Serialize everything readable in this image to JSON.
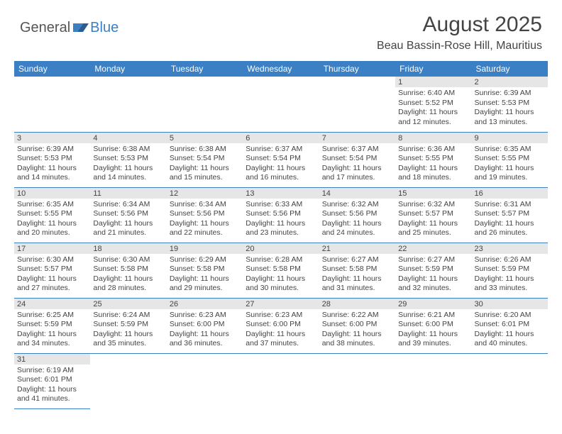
{
  "logo": {
    "general": "General",
    "blue": "Blue"
  },
  "title": "August 2025",
  "location": "Beau Bassin-Rose Hill, Mauritius",
  "colors": {
    "header_blue": "#3b7fc4",
    "daynum_bg": "#e6e6e6",
    "text": "#444444",
    "background": "#ffffff"
  },
  "weekdays": [
    "Sunday",
    "Monday",
    "Tuesday",
    "Wednesday",
    "Thursday",
    "Friday",
    "Saturday"
  ],
  "weeks": [
    [
      null,
      null,
      null,
      null,
      null,
      {
        "n": "1",
        "sr": "Sunrise: 6:40 AM",
        "ss": "Sunset: 5:52 PM",
        "dl": "Daylight: 11 hours and 12 minutes."
      },
      {
        "n": "2",
        "sr": "Sunrise: 6:39 AM",
        "ss": "Sunset: 5:53 PM",
        "dl": "Daylight: 11 hours and 13 minutes."
      }
    ],
    [
      {
        "n": "3",
        "sr": "Sunrise: 6:39 AM",
        "ss": "Sunset: 5:53 PM",
        "dl": "Daylight: 11 hours and 14 minutes."
      },
      {
        "n": "4",
        "sr": "Sunrise: 6:38 AM",
        "ss": "Sunset: 5:53 PM",
        "dl": "Daylight: 11 hours and 14 minutes."
      },
      {
        "n": "5",
        "sr": "Sunrise: 6:38 AM",
        "ss": "Sunset: 5:54 PM",
        "dl": "Daylight: 11 hours and 15 minutes."
      },
      {
        "n": "6",
        "sr": "Sunrise: 6:37 AM",
        "ss": "Sunset: 5:54 PM",
        "dl": "Daylight: 11 hours and 16 minutes."
      },
      {
        "n": "7",
        "sr": "Sunrise: 6:37 AM",
        "ss": "Sunset: 5:54 PM",
        "dl": "Daylight: 11 hours and 17 minutes."
      },
      {
        "n": "8",
        "sr": "Sunrise: 6:36 AM",
        "ss": "Sunset: 5:55 PM",
        "dl": "Daylight: 11 hours and 18 minutes."
      },
      {
        "n": "9",
        "sr": "Sunrise: 6:35 AM",
        "ss": "Sunset: 5:55 PM",
        "dl": "Daylight: 11 hours and 19 minutes."
      }
    ],
    [
      {
        "n": "10",
        "sr": "Sunrise: 6:35 AM",
        "ss": "Sunset: 5:55 PM",
        "dl": "Daylight: 11 hours and 20 minutes."
      },
      {
        "n": "11",
        "sr": "Sunrise: 6:34 AM",
        "ss": "Sunset: 5:56 PM",
        "dl": "Daylight: 11 hours and 21 minutes."
      },
      {
        "n": "12",
        "sr": "Sunrise: 6:34 AM",
        "ss": "Sunset: 5:56 PM",
        "dl": "Daylight: 11 hours and 22 minutes."
      },
      {
        "n": "13",
        "sr": "Sunrise: 6:33 AM",
        "ss": "Sunset: 5:56 PM",
        "dl": "Daylight: 11 hours and 23 minutes."
      },
      {
        "n": "14",
        "sr": "Sunrise: 6:32 AM",
        "ss": "Sunset: 5:56 PM",
        "dl": "Daylight: 11 hours and 24 minutes."
      },
      {
        "n": "15",
        "sr": "Sunrise: 6:32 AM",
        "ss": "Sunset: 5:57 PM",
        "dl": "Daylight: 11 hours and 25 minutes."
      },
      {
        "n": "16",
        "sr": "Sunrise: 6:31 AM",
        "ss": "Sunset: 5:57 PM",
        "dl": "Daylight: 11 hours and 26 minutes."
      }
    ],
    [
      {
        "n": "17",
        "sr": "Sunrise: 6:30 AM",
        "ss": "Sunset: 5:57 PM",
        "dl": "Daylight: 11 hours and 27 minutes."
      },
      {
        "n": "18",
        "sr": "Sunrise: 6:30 AM",
        "ss": "Sunset: 5:58 PM",
        "dl": "Daylight: 11 hours and 28 minutes."
      },
      {
        "n": "19",
        "sr": "Sunrise: 6:29 AM",
        "ss": "Sunset: 5:58 PM",
        "dl": "Daylight: 11 hours and 29 minutes."
      },
      {
        "n": "20",
        "sr": "Sunrise: 6:28 AM",
        "ss": "Sunset: 5:58 PM",
        "dl": "Daylight: 11 hours and 30 minutes."
      },
      {
        "n": "21",
        "sr": "Sunrise: 6:27 AM",
        "ss": "Sunset: 5:58 PM",
        "dl": "Daylight: 11 hours and 31 minutes."
      },
      {
        "n": "22",
        "sr": "Sunrise: 6:27 AM",
        "ss": "Sunset: 5:59 PM",
        "dl": "Daylight: 11 hours and 32 minutes."
      },
      {
        "n": "23",
        "sr": "Sunrise: 6:26 AM",
        "ss": "Sunset: 5:59 PM",
        "dl": "Daylight: 11 hours and 33 minutes."
      }
    ],
    [
      {
        "n": "24",
        "sr": "Sunrise: 6:25 AM",
        "ss": "Sunset: 5:59 PM",
        "dl": "Daylight: 11 hours and 34 minutes."
      },
      {
        "n": "25",
        "sr": "Sunrise: 6:24 AM",
        "ss": "Sunset: 5:59 PM",
        "dl": "Daylight: 11 hours and 35 minutes."
      },
      {
        "n": "26",
        "sr": "Sunrise: 6:23 AM",
        "ss": "Sunset: 6:00 PM",
        "dl": "Daylight: 11 hours and 36 minutes."
      },
      {
        "n": "27",
        "sr": "Sunrise: 6:23 AM",
        "ss": "Sunset: 6:00 PM",
        "dl": "Daylight: 11 hours and 37 minutes."
      },
      {
        "n": "28",
        "sr": "Sunrise: 6:22 AM",
        "ss": "Sunset: 6:00 PM",
        "dl": "Daylight: 11 hours and 38 minutes."
      },
      {
        "n": "29",
        "sr": "Sunrise: 6:21 AM",
        "ss": "Sunset: 6:00 PM",
        "dl": "Daylight: 11 hours and 39 minutes."
      },
      {
        "n": "30",
        "sr": "Sunrise: 6:20 AM",
        "ss": "Sunset: 6:01 PM",
        "dl": "Daylight: 11 hours and 40 minutes."
      }
    ],
    [
      {
        "n": "31",
        "sr": "Sunrise: 6:19 AM",
        "ss": "Sunset: 6:01 PM",
        "dl": "Daylight: 11 hours and 41 minutes."
      },
      null,
      null,
      null,
      null,
      null,
      null
    ]
  ]
}
